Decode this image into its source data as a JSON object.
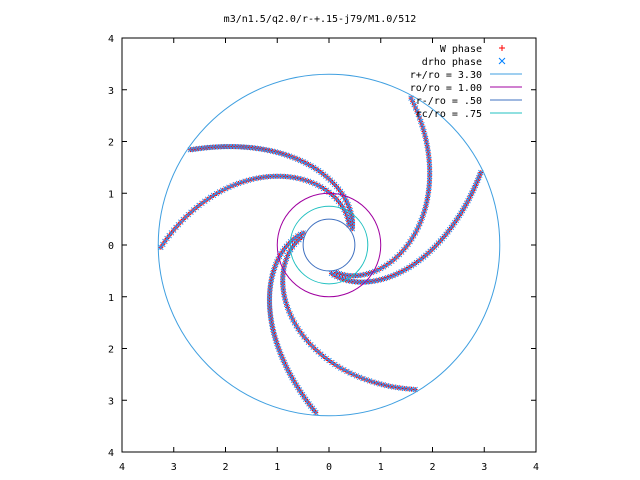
{
  "chart_data": {
    "type": "scatter",
    "title": "m3/n1.5/q2.0/r-+.15-j79/M1.0/512",
    "xlabel": "",
    "ylabel": "",
    "xlim": [
      -4,
      4
    ],
    "ylim": [
      -4,
      4
    ],
    "x_tick_labels": [
      "4",
      "3",
      "2",
      "1",
      "0",
      "1",
      "2",
      "3",
      "4"
    ],
    "y_tick_labels": [
      "4",
      "3",
      "2",
      "1",
      "0",
      "1",
      "2",
      "3",
      "4"
    ],
    "grid": false,
    "legend_position": "top-right",
    "legend": [
      {
        "label": "W phase",
        "marker": "plus",
        "color": "#ff0000"
      },
      {
        "label": "drho phase",
        "marker": "cross",
        "color": "#0080ff"
      },
      {
        "label": "r+/ro = 3.30",
        "line": true,
        "color": "#3f9fe0"
      },
      {
        "label": "ro/ro = 1.00",
        "line": true,
        "color": "#a000a0"
      },
      {
        "label": "r-/ro = .50",
        "line": true,
        "color": "#3f70c0"
      },
      {
        "label": "rc/ro = .75",
        "line": true,
        "color": "#20c0c0"
      }
    ],
    "circles": [
      {
        "name": "r+/ro = 3.30",
        "radius": 3.3,
        "color": "#3f9fe0"
      },
      {
        "name": "ro/ro = 1.00",
        "radius": 1.0,
        "color": "#a000a0"
      },
      {
        "name": "r-/ro = .50",
        "radius": 0.5,
        "color": "#3f70c0"
      },
      {
        "name": "rc/ro = .75",
        "radius": 0.75,
        "color": "#20c0c0"
      }
    ],
    "arms": [
      {
        "phase_deg": 40,
        "inner_r": 0.55,
        "outer_r": 3.25,
        "wind": 0.55
      },
      {
        "phase_deg": 160,
        "inner_r": 0.55,
        "outer_r": 3.25,
        "wind": 0.55
      },
      {
        "phase_deg": 280,
        "inner_r": 0.55,
        "outer_r": 3.25,
        "wind": 0.55
      }
    ],
    "marker_colors": {
      "W": "#ff0000",
      "drho": "#2f8fef",
      "overlap": "#7f3f8f"
    }
  }
}
